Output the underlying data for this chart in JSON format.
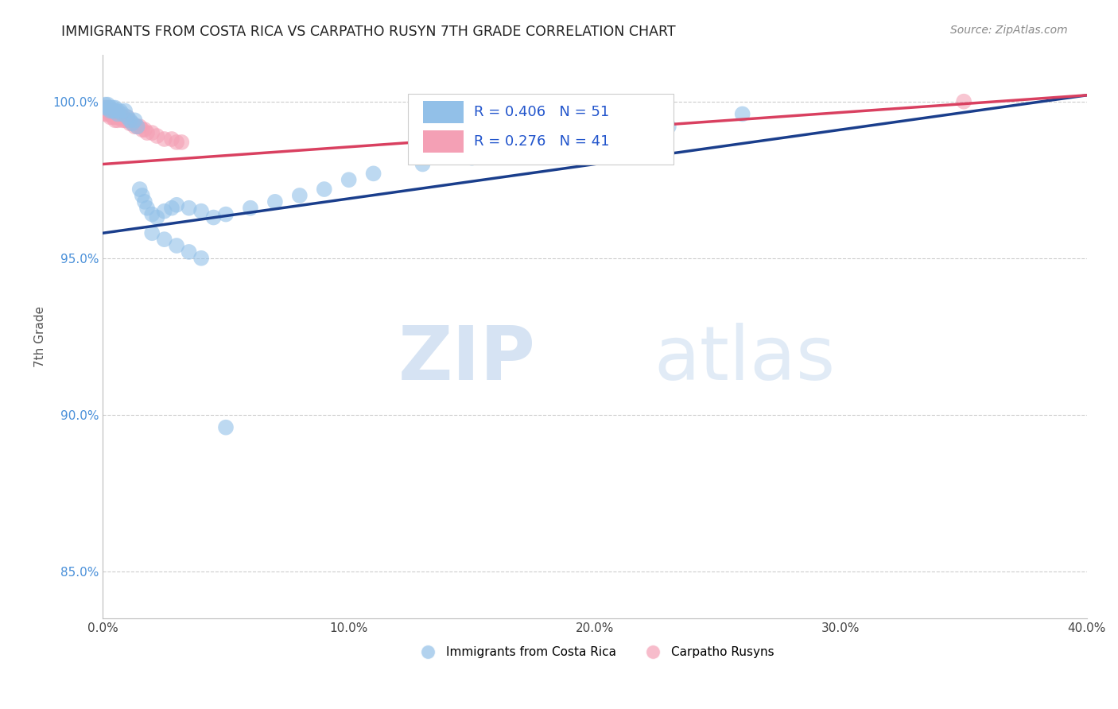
{
  "title": "IMMIGRANTS FROM COSTA RICA VS CARPATHO RUSYN 7TH GRADE CORRELATION CHART",
  "source_text": "Source: ZipAtlas.com",
  "ylabel": "7th Grade",
  "xlim": [
    0.0,
    0.4
  ],
  "ylim": [
    0.835,
    1.015
  ],
  "xtick_labels": [
    "0.0%",
    "",
    "10.0%",
    "",
    "20.0%",
    "",
    "30.0%",
    "",
    "40.0%"
  ],
  "xtick_vals": [
    0.0,
    0.05,
    0.1,
    0.15,
    0.2,
    0.25,
    0.3,
    0.35,
    0.4
  ],
  "ytick_labels": [
    "85.0%",
    "90.0%",
    "95.0%",
    "100.0%"
  ],
  "ytick_vals": [
    0.85,
    0.9,
    0.95,
    1.0
  ],
  "blue_color": "#92C0E8",
  "pink_color": "#F4A0B5",
  "blue_line_color": "#1A3E8C",
  "pink_line_color": "#D94060",
  "legend_R_blue": "0.406",
  "legend_N_blue": "51",
  "legend_R_pink": "0.276",
  "legend_N_pink": "41",
  "legend_label_blue": "Immigrants from Costa Rica",
  "legend_label_pink": "Carpatho Rusyns",
  "watermark_zip": "ZIP",
  "watermark_atlas": "atlas",
  "blue_scatter_x": [
    0.001,
    0.001,
    0.002,
    0.002,
    0.003,
    0.003,
    0.004,
    0.004,
    0.005,
    0.005,
    0.006,
    0.006,
    0.007,
    0.008,
    0.009,
    0.01,
    0.011,
    0.012,
    0.013,
    0.014,
    0.015,
    0.016,
    0.017,
    0.018,
    0.02,
    0.022,
    0.025,
    0.028,
    0.03,
    0.035,
    0.04,
    0.045,
    0.05,
    0.06,
    0.07,
    0.08,
    0.09,
    0.1,
    0.11,
    0.13,
    0.15,
    0.17,
    0.2,
    0.23,
    0.26,
    0.02,
    0.025,
    0.03,
    0.035,
    0.04,
    0.05
  ],
  "blue_scatter_y": [
    0.998,
    0.999,
    0.998,
    0.999,
    0.997,
    0.998,
    0.998,
    0.997,
    0.997,
    0.998,
    0.997,
    0.996,
    0.997,
    0.996,
    0.997,
    0.995,
    0.994,
    0.993,
    0.994,
    0.992,
    0.972,
    0.97,
    0.968,
    0.966,
    0.964,
    0.963,
    0.965,
    0.966,
    0.967,
    0.966,
    0.965,
    0.963,
    0.964,
    0.966,
    0.968,
    0.97,
    0.972,
    0.975,
    0.977,
    0.98,
    0.982,
    0.985,
    0.988,
    0.992,
    0.996,
    0.958,
    0.956,
    0.954,
    0.952,
    0.95,
    0.896
  ],
  "pink_scatter_x": [
    0.001,
    0.001,
    0.001,
    0.002,
    0.002,
    0.002,
    0.003,
    0.003,
    0.003,
    0.004,
    0.004,
    0.004,
    0.005,
    0.005,
    0.005,
    0.005,
    0.006,
    0.006,
    0.006,
    0.007,
    0.007,
    0.008,
    0.008,
    0.009,
    0.01,
    0.01,
    0.011,
    0.012,
    0.013,
    0.014,
    0.015,
    0.016,
    0.017,
    0.018,
    0.02,
    0.022,
    0.025,
    0.028,
    0.03,
    0.032,
    0.35
  ],
  "pink_scatter_y": [
    0.998,
    0.997,
    0.996,
    0.998,
    0.997,
    0.996,
    0.997,
    0.996,
    0.995,
    0.997,
    0.996,
    0.995,
    0.997,
    0.996,
    0.995,
    0.994,
    0.996,
    0.995,
    0.994,
    0.996,
    0.995,
    0.995,
    0.994,
    0.994,
    0.995,
    0.994,
    0.993,
    0.993,
    0.992,
    0.992,
    0.992,
    0.991,
    0.991,
    0.99,
    0.99,
    0.989,
    0.988,
    0.988,
    0.987,
    0.987,
    1.0
  ],
  "blue_trend_x": [
    0.0,
    0.4
  ],
  "blue_trend_y": [
    0.958,
    1.002
  ],
  "pink_trend_x": [
    0.0,
    0.4
  ],
  "pink_trend_y": [
    0.98,
    1.002
  ]
}
